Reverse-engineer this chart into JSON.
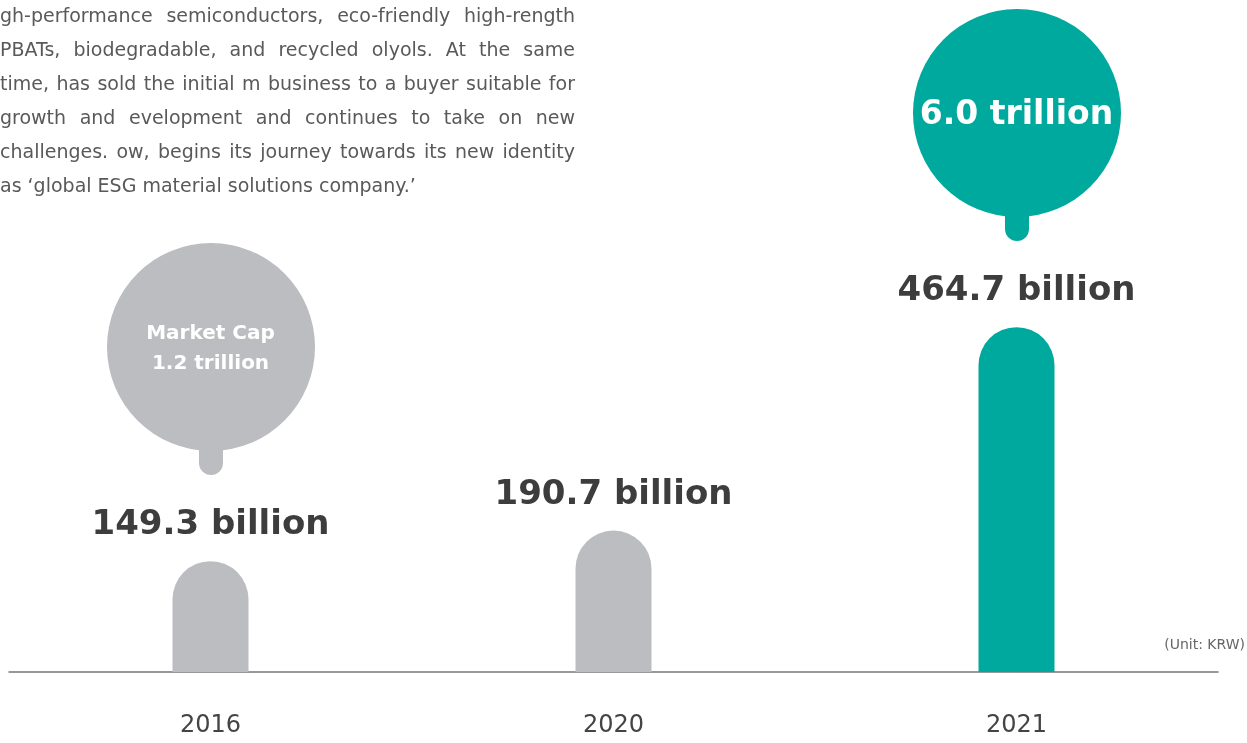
{
  "chart_data": {
    "type": "bar",
    "categories": [
      "2016",
      "2020",
      "2021"
    ],
    "values": [
      149.3,
      190.7,
      464.7
    ],
    "value_labels": [
      "149.3 billion",
      "190.7 billion",
      "464.7 billion"
    ],
    "colors": [
      "#bcbdc0",
      "#bcbdc0",
      "#00a99d"
    ],
    "grid": false,
    "annotations": [
      "gh-performance semiconductors, eco-friendly high-rength PBATs, biodegradable, and recycled olyols. At the same time, has sold the initial m business to a buyer suitable for growth and evelopment and continues to take on new challenges. ow, begins its journey towards its new identity as ‘global ESG material solutions company.’",
      "Market Cap\n1.2 trillion",
      "6.0 trillion",
      "(Unit: KRW)"
    ]
  }
}
